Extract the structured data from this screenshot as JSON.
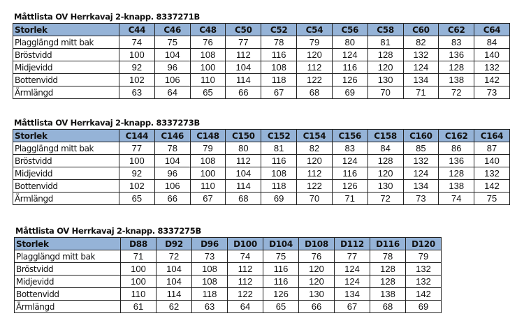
{
  "colors": {
    "header_bg": "#95b3d7"
  },
  "tables": [
    {
      "title": "Måttlista OV Herrkavaj 2-knapp. 8337271B",
      "header": [
        "Storlek",
        "C44",
        "C46",
        "C48",
        "C50",
        "C52",
        "C54",
        "C56",
        "C58",
        "C60",
        "C62",
        "C64"
      ],
      "rows": [
        [
          "Plagglängd mitt bak",
          "74",
          "75",
          "76",
          "77",
          "78",
          "79",
          "80",
          "81",
          "82",
          "83",
          "84"
        ],
        [
          "Bröstvidd",
          "100",
          "104",
          "108",
          "112",
          "116",
          "120",
          "124",
          "128",
          "132",
          "136",
          "140"
        ],
        [
          "Midjevidd",
          "92",
          "96",
          "100",
          "104",
          "108",
          "112",
          "116",
          "120",
          "124",
          "128",
          "132"
        ],
        [
          "Bottenvidd",
          "102",
          "106",
          "110",
          "114",
          "118",
          "122",
          "126",
          "130",
          "134",
          "138",
          "142"
        ],
        [
          "Ärmlängd",
          "63",
          "64",
          "65",
          "66",
          "67",
          "68",
          "69",
          "70",
          "71",
          "72",
          "73"
        ]
      ]
    },
    {
      "title": "Måttlista OV Herrkavaj 2-knapp. 8337273B",
      "header": [
        "Storlek",
        "C144",
        "C146",
        "C148",
        "C150",
        "C152",
        "C154",
        "C156",
        "C158",
        "C160",
        "C162",
        "C164"
      ],
      "rows": [
        [
          "Plagglängd mitt bak",
          "77",
          "78",
          "79",
          "80",
          "81",
          "82",
          "83",
          "84",
          "85",
          "86",
          "87"
        ],
        [
          "Bröstvidd",
          "100",
          "104",
          "108",
          "112",
          "116",
          "120",
          "124",
          "128",
          "132",
          "136",
          "140"
        ],
        [
          "Midjevidd",
          "92",
          "96",
          "100",
          "104",
          "108",
          "112",
          "116",
          "120",
          "124",
          "128",
          "132"
        ],
        [
          "Bottenvidd",
          "102",
          "106",
          "110",
          "114",
          "118",
          "122",
          "126",
          "130",
          "134",
          "138",
          "142"
        ],
        [
          "Ärmlängd",
          "65",
          "66",
          "67",
          "68",
          "69",
          "70",
          "71",
          "72",
          "73",
          "74",
          "75"
        ]
      ]
    },
    {
      "title": "Måttlista OV Herrkavaj 2-knapp. 8337275B",
      "header": [
        "Storlek",
        "D88",
        "D92",
        "D96",
        "D100",
        "D104",
        "D108",
        "D112",
        "D116",
        "D120"
      ],
      "rows": [
        [
          "Plagglängd mitt bak",
          "71",
          "72",
          "73",
          "74",
          "75",
          "76",
          "77",
          "78",
          "79"
        ],
        [
          "Bröstvidd",
          "100",
          "104",
          "108",
          "112",
          "116",
          "120",
          "124",
          "128",
          "132"
        ],
        [
          "Midjevidd",
          "100",
          "104",
          "108",
          "112",
          "116",
          "120",
          "124",
          "128",
          "132"
        ],
        [
          "Bottenvidd",
          "110",
          "114",
          "118",
          "122",
          "126",
          "130",
          "134",
          "138",
          "142"
        ],
        [
          "Ärmlängd",
          "61",
          "62",
          "63",
          "64",
          "65",
          "66",
          "67",
          "68",
          "69"
        ]
      ]
    }
  ]
}
